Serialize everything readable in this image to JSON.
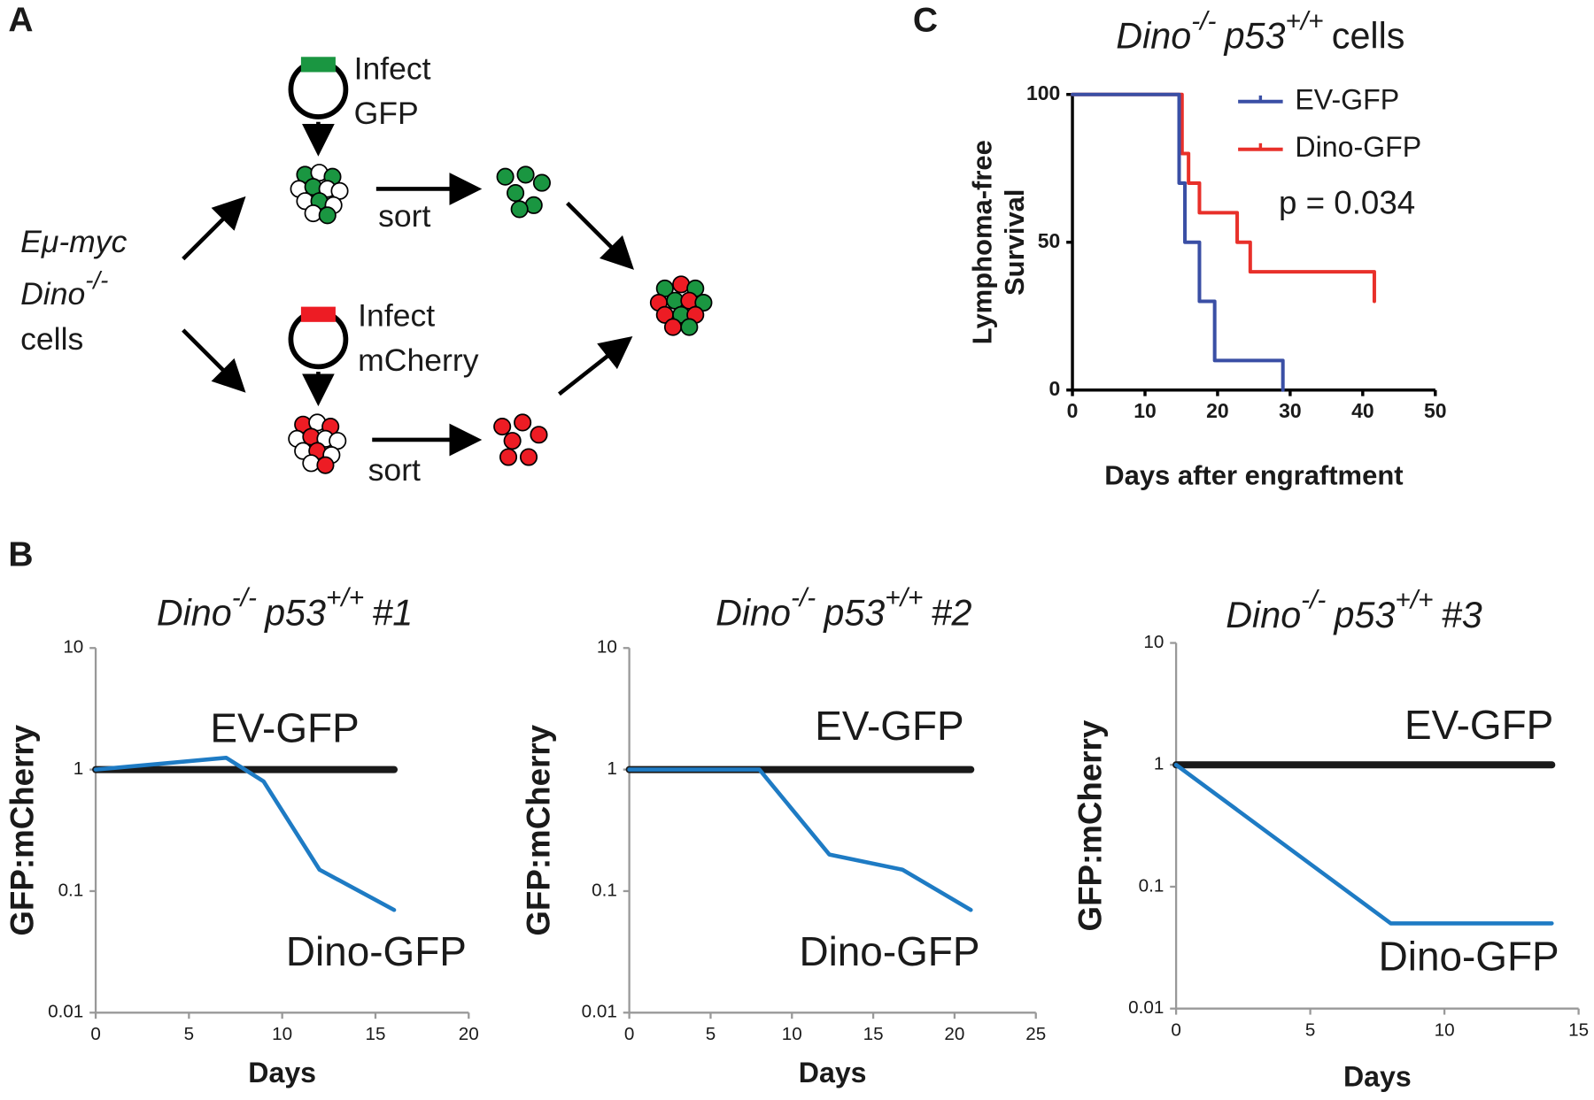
{
  "panels": [
    "A",
    "B",
    "C"
  ],
  "diagram": {
    "infect_gfp": [
      "Infect",
      "GFP"
    ],
    "infect_mcherry": [
      "Infect",
      "mCherry"
    ],
    "sort": [
      "sort",
      "sort"
    ],
    "cells_label": [
      "Eμ-myc",
      "Dino",
      "-/-",
      "cells"
    ]
  },
  "chart_data": [
    {
      "type": "line",
      "title": [
        "Dino",
        "-/-",
        "p53",
        "+/+",
        "#1"
      ],
      "y_label": "GFP:mCherry",
      "x_label": "Days",
      "log_y": true,
      "xlim": [
        0,
        20
      ],
      "xticks": [
        0,
        5,
        10,
        15,
        20
      ],
      "ylim": [
        0.01,
        10
      ],
      "yticks": [
        0.01,
        0.1,
        1,
        10
      ],
      "series": [
        {
          "name": "EV-GFP",
          "color": "#1a1a1a",
          "x": [
            0,
            16
          ],
          "values": [
            1,
            1
          ]
        },
        {
          "name": "Dino-GFP",
          "color": "#1e7bc4",
          "x": [
            0,
            7,
            9,
            12,
            16
          ],
          "values": [
            1,
            1.25,
            0.8,
            0.15,
            0.07
          ]
        }
      ]
    },
    {
      "type": "line",
      "title": [
        "Dino",
        "-/-",
        "p53",
        "+/+",
        "#2"
      ],
      "y_label": "GFP:mCherry",
      "x_label": "Days",
      "log_y": true,
      "xlim": [
        0,
        25
      ],
      "xticks": [
        0,
        5,
        10,
        15,
        20,
        25
      ],
      "ylim": [
        0.01,
        10
      ],
      "yticks": [
        0.01,
        0.1,
        1,
        10
      ],
      "series": [
        {
          "name": "EV-GFP",
          "color": "#1a1a1a",
          "x": [
            0,
            21
          ],
          "values": [
            1,
            1
          ]
        },
        {
          "name": "Dino-GFP",
          "color": "#1e7bc4",
          "x": [
            0,
            8,
            12.3,
            16.8,
            21
          ],
          "values": [
            1,
            1,
            0.2,
            0.15,
            0.07
          ]
        }
      ]
    },
    {
      "type": "line",
      "title": [
        "Dino",
        "-/-",
        "p53",
        "+/+",
        "#3"
      ],
      "y_label": "GFP:mCherry",
      "x_label": "Days",
      "log_y": true,
      "xlim": [
        0,
        15
      ],
      "xticks": [
        0,
        5,
        10,
        15
      ],
      "ylim": [
        0.01,
        10
      ],
      "yticks": [
        0.01,
        0.1,
        1,
        10
      ],
      "series": [
        {
          "name": "EV-GFP",
          "color": "#1a1a1a",
          "x": [
            0,
            14
          ],
          "values": [
            1,
            1
          ]
        },
        {
          "name": "Dino-GFP",
          "color": "#1e7bc4",
          "x": [
            0,
            8,
            14
          ],
          "values": [
            1,
            0.05,
            0.05
          ]
        }
      ]
    },
    {
      "type": "line",
      "step": true,
      "title": [
        "Dino",
        "-/-",
        "p53",
        "+/+",
        "cells"
      ],
      "y_label": [
        "Lymphoma-free",
        "Survival"
      ],
      "x_label": "Days after engraftment",
      "legend": "upper right",
      "annotation": "p = 0.034",
      "xlim": [
        0,
        50
      ],
      "xticks": [
        0,
        10,
        20,
        30,
        40,
        50
      ],
      "ylim": [
        0,
        100
      ],
      "yticks": [
        0,
        50,
        100
      ],
      "series": [
        {
          "name": "EV-GFP",
          "color": "#3a4fa5",
          "x": [
            0,
            14.7,
            15.5,
            17.5,
            19.6,
            29
          ],
          "values": [
            100,
            70,
            50,
            30,
            10,
            0
          ]
        },
        {
          "name": "Dino-GFP",
          "color": "#e8302a",
          "x": [
            0,
            15.1,
            16,
            17.5,
            22.7,
            24.5,
            41.6
          ],
          "values": [
            100,
            80,
            70,
            60,
            50,
            40,
            30
          ]
        }
      ]
    }
  ]
}
